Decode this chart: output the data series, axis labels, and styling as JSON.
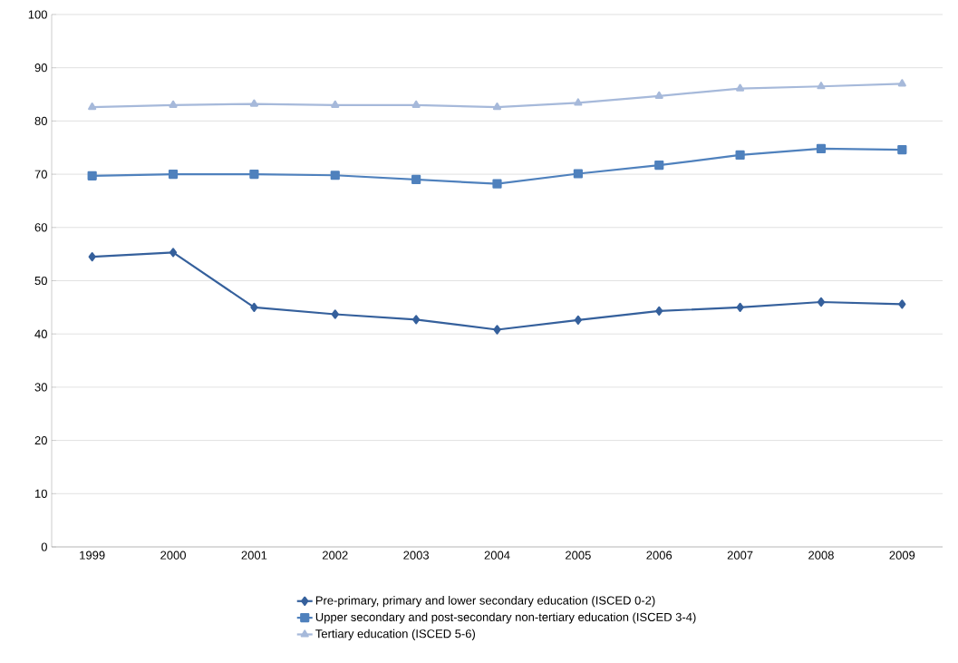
{
  "chart_data": {
    "type": "line",
    "categories": [
      "1999",
      "2000",
      "2001",
      "2002",
      "2003",
      "2004",
      "2005",
      "2006",
      "2007",
      "2008",
      "2009"
    ],
    "series": [
      {
        "name": "Pre-primary, primary and lower secondary education (ISCED 0-2)",
        "color": "#35609c",
        "marker": "diamond",
        "values": [
          54.5,
          55.3,
          45.0,
          43.7,
          42.7,
          40.8,
          42.6,
          44.3,
          45.0,
          46.0,
          45.6
        ]
      },
      {
        "name": "Upper secondary and post-secondary non-tertiary education (ISCED 3-4)",
        "color": "#4f81bd",
        "marker": "square",
        "values": [
          69.7,
          70.0,
          70.0,
          69.8,
          69.0,
          68.2,
          70.1,
          71.7,
          73.6,
          74.8,
          74.6
        ]
      },
      {
        "name": "Tertiary education (ISCED 5-6)",
        "color": "#a6b9da",
        "marker": "triangle",
        "values": [
          82.6,
          83.0,
          83.2,
          83.0,
          83.0,
          82.6,
          83.4,
          84.7,
          86.1,
          86.5,
          87.0
        ]
      }
    ],
    "ylim": [
      0,
      100
    ],
    "yticks": [
      0,
      10,
      20,
      30,
      40,
      50,
      60,
      70,
      80,
      90,
      100
    ],
    "grid": "y",
    "legend": "bottom",
    "line_style": "solid"
  }
}
